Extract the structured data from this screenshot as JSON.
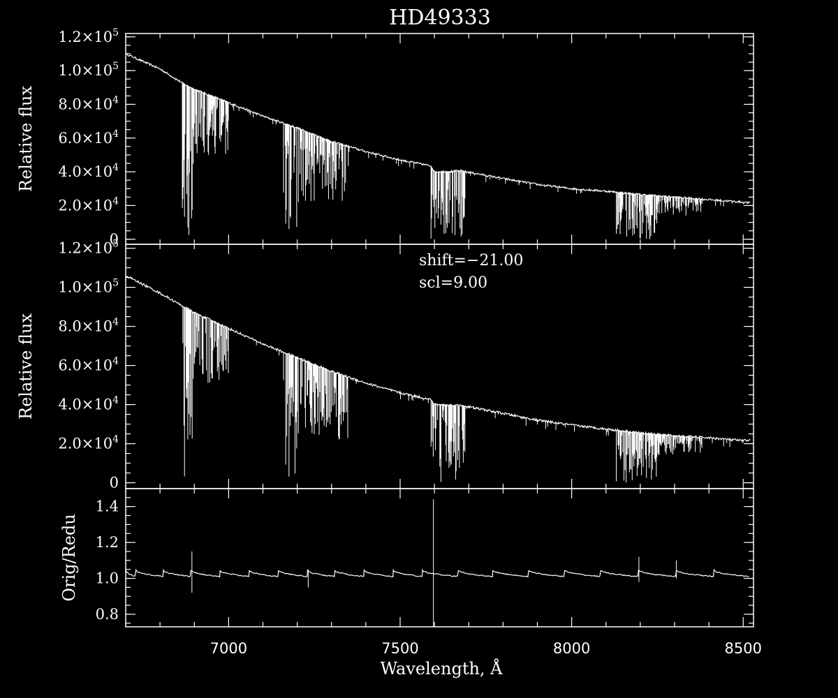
{
  "chart_data": {
    "type": "line",
    "title": "HD49333",
    "xlabel": "Wavelength, Å",
    "xlim": [
      6700,
      8530
    ],
    "x_ticks": [
      7000,
      7500,
      8000,
      8500
    ],
    "panels": [
      {
        "id": "original",
        "ylabel": "Relative flux",
        "ylim": [
          -3000,
          122000
        ],
        "y_ticks": [
          {
            "mantissa": "1.2×10",
            "exp": "5",
            "value": 120000
          },
          {
            "mantissa": "1.0×10",
            "exp": "5",
            "value": 100000
          },
          {
            "mantissa": "8.0×10",
            "exp": "4",
            "value": 80000
          },
          {
            "mantissa": "6.0×10",
            "exp": "4",
            "value": 60000
          },
          {
            "mantissa": "4.0×10",
            "exp": "4",
            "value": 40000
          },
          {
            "mantissa": "2.0×10",
            "exp": "4",
            "value": 20000
          },
          {
            "mantissa": "0",
            "exp": "",
            "value": 0
          }
        ],
        "continuum": {
          "x": [
            6700,
            6800,
            6870,
            6900,
            7000,
            7100,
            7200,
            7300,
            7400,
            7500,
            7590,
            7600,
            7680,
            7800,
            7900,
            8000,
            8100,
            8200,
            8300,
            8400,
            8500,
            8520
          ],
          "y": [
            110000,
            101000,
            92000,
            89000,
            81000,
            73000,
            66000,
            58000,
            52000,
            47000,
            43500,
            40000,
            40500,
            36000,
            32500,
            30000,
            28500,
            26500,
            25000,
            23500,
            22000,
            21500
          ]
        },
        "absorption_bands": [
          {
            "x": [
              6865,
              6900
            ],
            "depth": 0
          },
          {
            "x": [
              6900,
              7000
            ],
            "depth": 50000
          },
          {
            "x": [
              7160,
              7200
            ],
            "depth": 5000
          },
          {
            "x": [
              7200,
              7350
            ],
            "depth": 22000
          },
          {
            "x": [
              7590,
              7620
            ],
            "depth": 0
          },
          {
            "x": [
              7620,
              7690
            ],
            "depth": 1000
          },
          {
            "x": [
              8130,
              8250
            ],
            "depth": 0
          },
          {
            "x": [
              8250,
              8380
            ],
            "depth": 14000
          }
        ]
      },
      {
        "id": "reduced",
        "ylabel": "Relative flux",
        "ylim": [
          -3000,
          122000
        ],
        "y_ticks": [
          {
            "mantissa": "1.2×10",
            "exp": "5",
            "value": 120000
          },
          {
            "mantissa": "1.0×10",
            "exp": "5",
            "value": 100000
          },
          {
            "mantissa": "8.0×10",
            "exp": "4",
            "value": 80000
          },
          {
            "mantissa": "6.0×10",
            "exp": "4",
            "value": 60000
          },
          {
            "mantissa": "4.0×10",
            "exp": "4",
            "value": 40000
          },
          {
            "mantissa": "2.0×10",
            "exp": "4",
            "value": 20000
          },
          {
            "mantissa": "0",
            "exp": "",
            "value": 0
          }
        ],
        "annotations": [
          "shift=−21.00",
          "scl=9.00"
        ],
        "continuum": {
          "x": [
            6700,
            6800,
            6870,
            6900,
            7000,
            7100,
            7200,
            7300,
            7400,
            7500,
            7590,
            7600,
            7680,
            7800,
            7900,
            8000,
            8100,
            8200,
            8300,
            8400,
            8500,
            8520
          ],
          "y": [
            106000,
            97000,
            90000,
            87000,
            79000,
            71000,
            64000,
            57000,
            51000,
            46000,
            42500,
            40000,
            39500,
            35500,
            32000,
            29500,
            27500,
            25500,
            24000,
            23000,
            21500,
            22000
          ]
        },
        "absorption_bands": [
          {
            "x": [
              6865,
              6900
            ],
            "depth": 0
          },
          {
            "x": [
              6900,
              7000
            ],
            "depth": 50000
          },
          {
            "x": [
              7160,
              7200
            ],
            "depth": 3000
          },
          {
            "x": [
              7200,
              7350
            ],
            "depth": 22000
          },
          {
            "x": [
              7590,
              7620
            ],
            "depth": 0
          },
          {
            "x": [
              7620,
              7690
            ],
            "depth": 1000
          },
          {
            "x": [
              8130,
              8250
            ],
            "depth": 0
          },
          {
            "x": [
              8250,
              8380
            ],
            "depth": 14000
          }
        ]
      },
      {
        "id": "ratio",
        "ylabel": "Orig/Redu",
        "ylim": [
          0.73,
          1.5
        ],
        "y_ticks": [
          {
            "mantissa": "1.4",
            "exp": "",
            "value": 1.4
          },
          {
            "mantissa": "1.2",
            "exp": "",
            "value": 1.2
          },
          {
            "mantissa": "1.0",
            "exp": "",
            "value": 1.0
          },
          {
            "mantissa": "0.8",
            "exp": "",
            "value": 0.8
          }
        ],
        "baseline": 1.0,
        "sawtooth_steps_x": [
          6700,
          6730,
          6810,
          6890,
          6975,
          7060,
          7145,
          7230,
          7310,
          7395,
          7480,
          7565,
          7670,
          7770,
          7875,
          7980,
          8085,
          8195,
          8305,
          8415,
          8520
        ],
        "spikes": [
          {
            "x": 6893,
            "high": 1.15,
            "low": 0.92
          },
          {
            "x": 7232,
            "high": 1.05,
            "low": 0.95
          },
          {
            "x": 7597,
            "high": 1.44,
            "low": 0.73
          },
          {
            "x": 8196,
            "high": 1.12,
            "low": 0.98
          },
          {
            "x": 8305,
            "high": 1.1,
            "low": 1.0
          }
        ]
      }
    ]
  }
}
